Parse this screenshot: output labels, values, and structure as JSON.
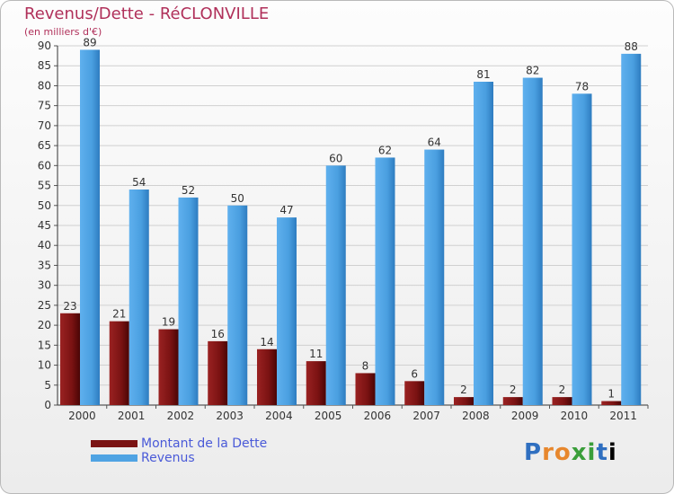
{
  "header": {
    "title": "Revenus/Dette - RéCLONVILLE",
    "subtitle": "(en milliers d'€)"
  },
  "legend": {
    "items": [
      {
        "label": "Montant de la Dette",
        "color": "#7a1212"
      },
      {
        "label": "Revenus",
        "color": "#4fa3e3"
      }
    ]
  },
  "logo": {
    "text": "Proxiti"
  },
  "chart_data": {
    "type": "bar",
    "title": "Revenus/Dette - RéCLONVILLE",
    "ylabel": "(en milliers d'€)",
    "xlabel": "",
    "ylim": [
      0,
      90
    ],
    "yticks": [
      0,
      5,
      10,
      15,
      20,
      25,
      30,
      35,
      40,
      45,
      50,
      55,
      60,
      65,
      70,
      75,
      80,
      85,
      90
    ],
    "categories": [
      "2000",
      "2001",
      "2002",
      "2003",
      "2004",
      "2005",
      "2006",
      "2007",
      "2008",
      "2009",
      "2010",
      "2011"
    ],
    "series": [
      {
        "name": "Montant de la Dette",
        "color": "#7a1212",
        "values": [
          23,
          21,
          19,
          16,
          14,
          11,
          8,
          6,
          2,
          2,
          2,
          1
        ]
      },
      {
        "name": "Revenus",
        "color": "#4fa3e3",
        "values": [
          89,
          54,
          52,
          50,
          47,
          60,
          62,
          64,
          81,
          82,
          78,
          88
        ]
      }
    ],
    "grid": true,
    "legend": "bottom-left"
  }
}
